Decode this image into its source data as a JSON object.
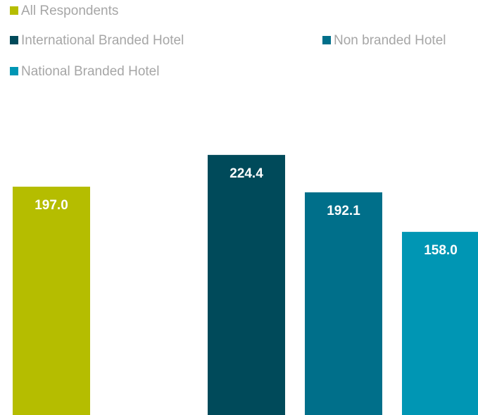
{
  "chart_data": {
    "type": "bar",
    "series": [
      {
        "name": "All Respondents",
        "color": "#b5bd00",
        "values": [
          197
        ],
        "value_labels": [
          "197.0"
        ]
      },
      {
        "name": "International Branded Hotel",
        "color": "#004a5a",
        "values": [
          224.4
        ],
        "value_labels": [
          "224.4"
        ]
      },
      {
        "name": "Non branded Hotel",
        "color": "#006f8a",
        "values": [
          192.1
        ],
        "value_labels": [
          "192.1"
        ]
      },
      {
        "name": "National Branded Hotel",
        "color": "#0096b4",
        "values": [
          158
        ],
        "value_labels": [
          "158.0"
        ]
      }
    ]
  }
}
